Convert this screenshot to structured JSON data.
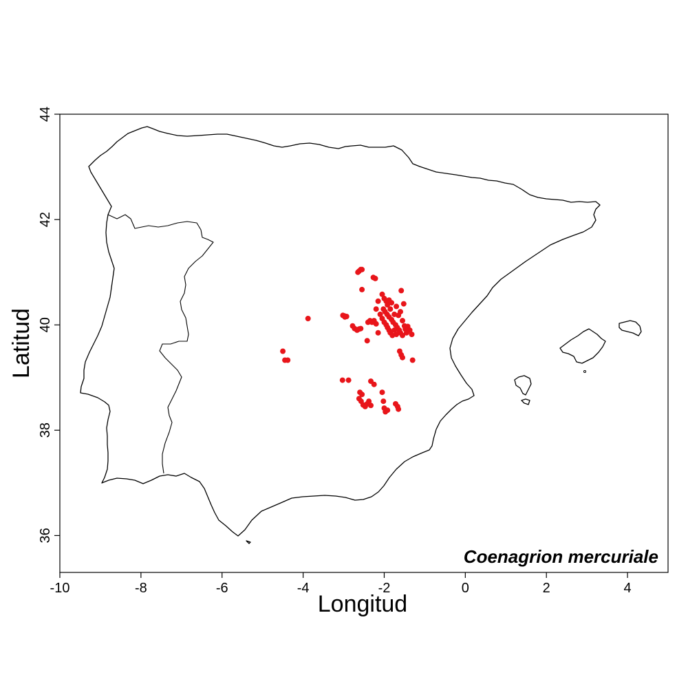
{
  "chart_data": {
    "type": "scatter",
    "title": "",
    "annotation": "Coenagrion mercuriale",
    "xlabel": "Longitud",
    "ylabel": "Latitud",
    "xlim": [
      -10,
      5
    ],
    "ylim": [
      35.3,
      44
    ],
    "x_ticks": [
      -10,
      -8,
      -6,
      -4,
      -2,
      0,
      2,
      4
    ],
    "y_ticks": [
      36,
      38,
      40,
      42,
      44
    ],
    "point_color": "#e8151a",
    "basemap": "Iberian Peninsula and Balearic Islands outline",
    "points": [
      [
        -4.5,
        39.5
      ],
      [
        -4.45,
        39.33
      ],
      [
        -4.38,
        39.33
      ],
      [
        -3.88,
        40.12
      ],
      [
        -2.62,
        41.02
      ],
      [
        -2.58,
        41.05
      ],
      [
        -2.55,
        41.05
      ],
      [
        -2.65,
        41.0
      ],
      [
        -2.55,
        40.67
      ],
      [
        -2.27,
        40.9
      ],
      [
        -2.22,
        40.88
      ],
      [
        -3.02,
        40.18
      ],
      [
        -2.98,
        40.17
      ],
      [
        -2.97,
        40.15
      ],
      [
        -2.93,
        40.16
      ],
      [
        -2.78,
        39.98
      ],
      [
        -2.73,
        39.93
      ],
      [
        -2.67,
        39.9
      ],
      [
        -2.62,
        39.92
      ],
      [
        -2.58,
        39.93
      ],
      [
        -2.4,
        40.05
      ],
      [
        -2.35,
        40.08
      ],
      [
        -2.3,
        40.05
      ],
      [
        -2.25,
        40.08
      ],
      [
        -2.2,
        40.02
      ],
      [
        -2.42,
        39.7
      ],
      [
        -2.15,
        39.85
      ],
      [
        -2.05,
        40.58
      ],
      [
        -2.0,
        40.5
      ],
      [
        -1.95,
        40.45
      ],
      [
        -1.88,
        40.47
      ],
      [
        -1.82,
        40.42
      ],
      [
        -2.02,
        40.3
      ],
      [
        -1.98,
        40.25
      ],
      [
        -1.93,
        40.2
      ],
      [
        -1.88,
        40.15
      ],
      [
        -1.82,
        40.1
      ],
      [
        -1.78,
        40.05
      ],
      [
        -1.72,
        40.0
      ],
      [
        -1.68,
        39.95
      ],
      [
        -1.63,
        39.9
      ],
      [
        -1.6,
        39.85
      ],
      [
        -1.55,
        39.8
      ],
      [
        -1.48,
        39.92
      ],
      [
        -1.42,
        39.97
      ],
      [
        -1.37,
        39.9
      ],
      [
        -1.32,
        39.82
      ],
      [
        -1.58,
        40.65
      ],
      [
        -1.52,
        40.4
      ],
      [
        -1.6,
        40.25
      ],
      [
        -1.65,
        40.18
      ],
      [
        -2.1,
        40.2
      ],
      [
        -2.05,
        40.12
      ],
      [
        -2.0,
        40.05
      ],
      [
        -1.95,
        40.0
      ],
      [
        -1.92,
        39.95
      ],
      [
        -1.88,
        39.9
      ],
      [
        -1.85,
        39.85
      ],
      [
        -1.8,
        39.8
      ],
      [
        -1.75,
        39.9
      ],
      [
        -1.7,
        39.82
      ],
      [
        -2.15,
        40.45
      ],
      [
        -2.2,
        40.3
      ],
      [
        -1.7,
        40.35
      ],
      [
        -1.75,
        40.2
      ],
      [
        -1.85,
        40.3
      ],
      [
        -1.92,
        40.38
      ],
      [
        -1.55,
        40.08
      ],
      [
        -1.5,
        39.98
      ],
      [
        -1.45,
        39.85
      ],
      [
        -1.62,
        39.5
      ],
      [
        -1.58,
        39.43
      ],
      [
        -1.55,
        39.38
      ],
      [
        -1.3,
        39.33
      ],
      [
        -3.03,
        38.95
      ],
      [
        -2.88,
        38.95
      ],
      [
        -2.33,
        38.93
      ],
      [
        -2.25,
        38.87
      ],
      [
        -2.6,
        38.72
      ],
      [
        -2.55,
        38.68
      ],
      [
        -2.62,
        38.6
      ],
      [
        -2.57,
        38.55
      ],
      [
        -2.52,
        38.48
      ],
      [
        -2.47,
        38.45
      ],
      [
        -2.42,
        38.5
      ],
      [
        -2.38,
        38.55
      ],
      [
        -2.33,
        38.47
      ],
      [
        -2.05,
        38.72
      ],
      [
        -2.02,
        38.55
      ],
      [
        -2.0,
        38.42
      ],
      [
        -1.97,
        38.35
      ],
      [
        -1.92,
        38.38
      ],
      [
        -1.72,
        38.5
      ],
      [
        -1.67,
        38.45
      ],
      [
        -1.65,
        38.4
      ]
    ]
  }
}
